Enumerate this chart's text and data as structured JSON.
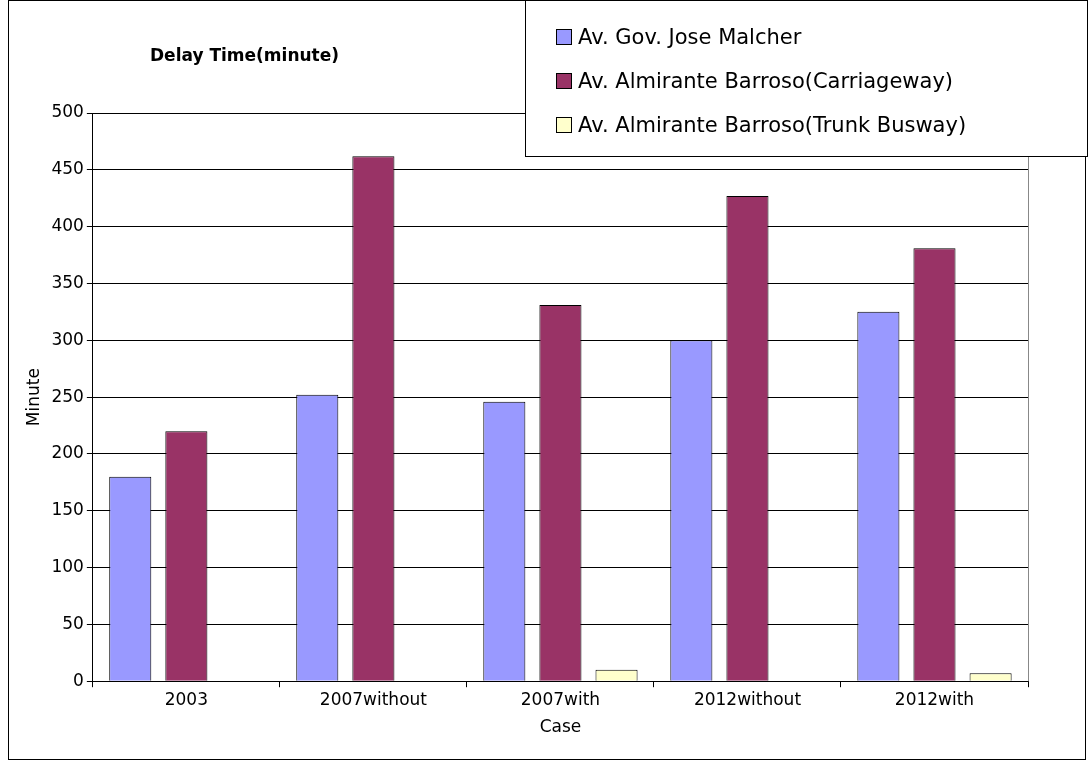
{
  "chart_data": {
    "type": "bar",
    "title": "Delay Time(minute)",
    "xlabel": "Case",
    "ylabel": "Minute",
    "categories": [
      "2003",
      "2007without",
      "2007with",
      "2012without",
      "2012with"
    ],
    "series": [
      {
        "name": "Av. Gov. Jose Malcher",
        "color": "#9999ff",
        "values": [
          180,
          252,
          246,
          300,
          325
        ]
      },
      {
        "name": "Av. Almirante Barroso(Carriageway)",
        "color": "#993366",
        "values": [
          220,
          462,
          331,
          427,
          381
        ]
      },
      {
        "name": "Av. Almirante Barroso(Trunk Busway)",
        "color": "#ffffcc",
        "values": [
          0,
          0,
          10,
          0,
          7
        ]
      }
    ],
    "ylim": [
      0,
      500
    ],
    "yticks": [
      0,
      50,
      100,
      150,
      200,
      250,
      300,
      350,
      400,
      450,
      500
    ],
    "grid": "y",
    "legend": "top right"
  }
}
